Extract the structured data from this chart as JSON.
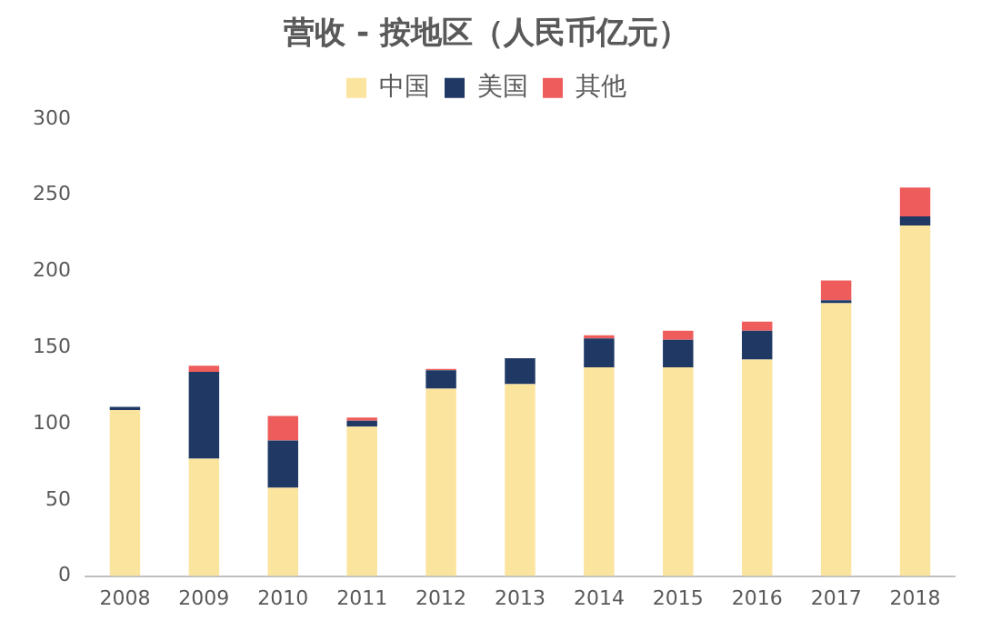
{
  "chart_data": {
    "type": "bar",
    "title": "营收 - 按地区（人民币亿元）",
    "stacked": true,
    "legend": "top",
    "grid": false,
    "categories": [
      "2008",
      "2009",
      "2010",
      "2011",
      "2012",
      "2013",
      "2014",
      "2015",
      "2016",
      "2017",
      "2018"
    ],
    "series": [
      {
        "name": "中国",
        "color": "#fbe49d",
        "values": [
          109,
          77,
          58,
          98,
          123,
          126,
          137,
          137,
          142,
          179,
          230
        ]
      },
      {
        "name": "美国",
        "color": "#1f3864",
        "values": [
          2,
          57,
          31,
          4,
          12,
          17,
          19,
          18,
          19,
          2,
          6
        ]
      },
      {
        "name": "其他",
        "color": "#ee5c5c",
        "values": [
          0,
          4,
          16,
          2,
          1,
          0,
          2,
          6,
          6,
          13,
          19
        ]
      }
    ],
    "ylim": [
      0,
      300
    ],
    "yticks": [
      0,
      50,
      100,
      150,
      200,
      250,
      300
    ]
  }
}
